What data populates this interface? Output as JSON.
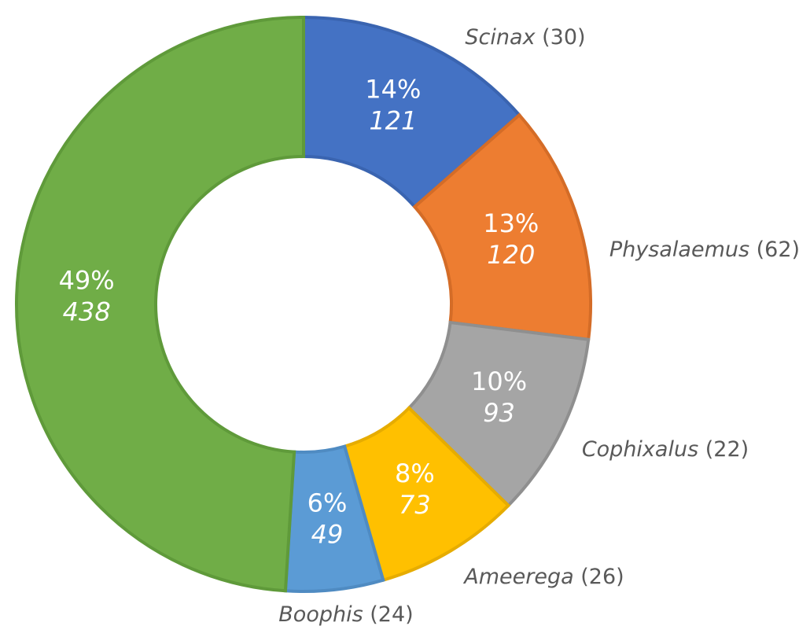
{
  "chart_data": {
    "type": "donut",
    "categories": [
      "Scinax",
      "Physalaemus",
      "Cophixalus",
      "Ameerega",
      "Boophis",
      null
    ],
    "category_notes": [
      "(30)",
      "(62)",
      "(22)",
      "(26)",
      "(24)",
      null
    ],
    "values": [
      121,
      120,
      93,
      73,
      49,
      438
    ],
    "percent_labels": [
      "14%",
      "13%",
      "10%",
      "8%",
      "6%",
      "49%"
    ],
    "colors": [
      "#4472c4",
      "#ed7d31",
      "#a5a5a5",
      "#ffc000",
      "#5b9bd5",
      "#70ad47"
    ],
    "borders": [
      "#3a64b0",
      "#d46c27",
      "#8f8f8f",
      "#e6ac00",
      "#4f8bc2",
      "#5f9a3a"
    ]
  }
}
